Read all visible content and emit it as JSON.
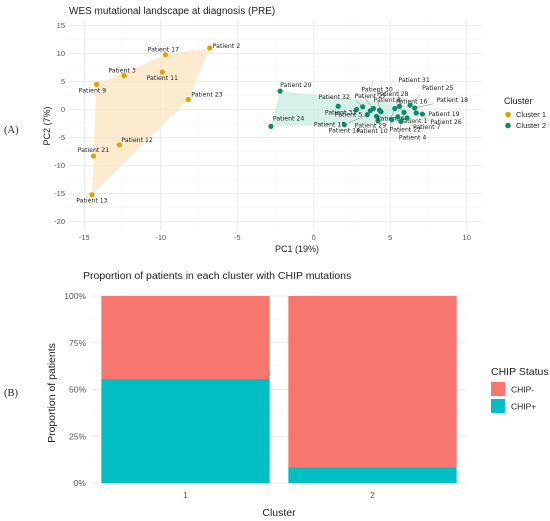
{
  "panel_labels": {
    "a": "(A)",
    "b": "(B)"
  },
  "chart_data": [
    {
      "type": "scatter",
      "title": "WES mutational landscape at diagnosis (PRE)",
      "xlabel": "PC1 (19%)",
      "ylabel": "PC2 (7%)",
      "xlim": [
        -16,
        11
      ],
      "ylim": [
        -21.5,
        16
      ],
      "xticks": [
        -15,
        -10,
        -5,
        0,
        5,
        10
      ],
      "yticks": [
        15,
        10,
        5,
        0,
        -5,
        -10,
        -15,
        -20
      ],
      "grid": true,
      "legend": {
        "title": "Cluster",
        "position": "right"
      },
      "hull_note": "convex hull shaded per cluster",
      "series": [
        {
          "name": "Cluster 1",
          "color": "#E69F00",
          "hull_color": "#FCE4C0",
          "points": [
            {
              "label": "Patient 2",
              "x": -6.8,
              "y": 11.0
            },
            {
              "label": "Patient 17",
              "x": -9.7,
              "y": 9.8
            },
            {
              "label": "Patient 3",
              "x": -12.4,
              "y": 6.1
            },
            {
              "label": "Patient 11",
              "x": -9.9,
              "y": 6.7
            },
            {
              "label": "Patient 9",
              "x": -14.2,
              "y": 4.5
            },
            {
              "label": "Patient 23",
              "x": -8.2,
              "y": 1.8
            },
            {
              "label": "Patient 12",
              "x": -12.7,
              "y": -6.3
            },
            {
              "label": "Patient 21",
              "x": -14.4,
              "y": -8.3
            },
            {
              "label": "Patient 13",
              "x": -14.5,
              "y": -15.2
            }
          ]
        },
        {
          "name": "Cluster 2",
          "color": "#0E8A6B",
          "hull_color": "#C8ECE3",
          "points": [
            {
              "label": "Patient 20",
              "x": -2.2,
              "y": 3.3
            },
            {
              "label": "Patient 24",
              "x": -2.8,
              "y": -3.0
            },
            {
              "label": "Patient 32",
              "x": 1.6,
              "y": 0.6
            },
            {
              "label": "Patient 27",
              "x": 3.2,
              "y": 0.5
            },
            {
              "label": "Patient 30",
              "x": 3.9,
              "y": 0.2
            },
            {
              "label": "Patient 33",
              "x": 2.8,
              "y": 0.0
            },
            {
              "label": "Patient 5",
              "x": 3.7,
              "y": -0.2
            },
            {
              "label": "Patient 8",
              "x": 4.3,
              "y": -0.1
            },
            {
              "label": "Patient 28",
              "x": 4.4,
              "y": -0.4
            },
            {
              "label": "Patient 15",
              "x": 3.5,
              "y": -0.9
            },
            {
              "label": "Patient 29",
              "x": 4.1,
              "y": -1.2
            },
            {
              "label": "Patient 14",
              "x": 2.0,
              "y": -2.7
            },
            {
              "label": "Patient 10",
              "x": 4.2,
              "y": -2.0
            },
            {
              "label": "Patient 6",
              "x": 5.3,
              "y": 0.2
            },
            {
              "label": "Patient 31",
              "x": 5.6,
              "y": 0.6
            },
            {
              "label": "Patient 16",
              "x": 5.9,
              "y": -0.5
            },
            {
              "label": "Patient 25",
              "x": 6.3,
              "y": 0.8
            },
            {
              "label": "Patient 18",
              "x": 6.6,
              "y": 0.3
            },
            {
              "label": "Patient 19",
              "x": 6.7,
              "y": -0.6
            },
            {
              "label": "Patient 1",
              "x": 5.5,
              "y": -1.3
            },
            {
              "label": "Patient 26",
              "x": 7.1,
              "y": -0.8
            },
            {
              "label": "Patient 22",
              "x": 5.1,
              "y": -1.8
            },
            {
              "label": "Patient 7",
              "x": 6.1,
              "y": -1.5
            },
            {
              "label": "Patient 4",
              "x": 5.7,
              "y": -2.1
            }
          ]
        }
      ]
    },
    {
      "type": "bar",
      "stacked": true,
      "title": "Proportion of patients in each cluster with CHIP mutations",
      "xlabel": "Cluster",
      "ylabel": "Proportion of patients",
      "categories": [
        "1",
        "2"
      ],
      "ylim": [
        0,
        1
      ],
      "yticks": [
        "0%",
        "25%",
        "50%",
        "75%",
        "100%"
      ],
      "grid": true,
      "legend": {
        "title": "CHIP Status",
        "position": "right"
      },
      "series": [
        {
          "name": "CHIP+",
          "color": "#00BFC4",
          "values": [
            0.556,
            0.083
          ]
        },
        {
          "name": "CHIP-",
          "color": "#F8766D",
          "values": [
            0.444,
            0.917
          ]
        }
      ]
    }
  ]
}
